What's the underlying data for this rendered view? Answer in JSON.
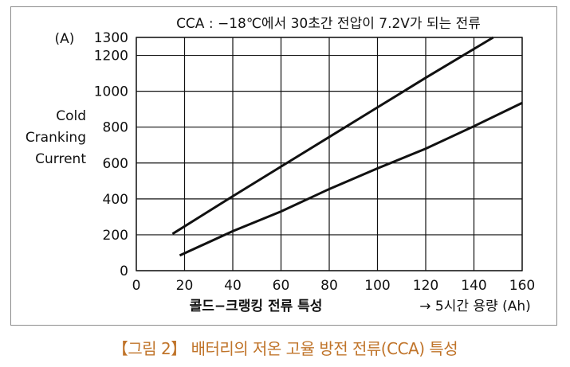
{
  "caption": "【그림 2】 배터리의 저온 고율 방전 전류(CCA) 특성",
  "chart_data": {
    "type": "line",
    "title": "CCA : −18℃에서 30초간 전압이 7.2V가 되는 전류",
    "y_unit": "(A)",
    "ylabel": [
      "Cold",
      "Cranking",
      "Current"
    ],
    "xlabel": "콜드−크랭킹 전류 특성",
    "xlabel_right": "→ 5시간 용량 (Ah)",
    "xlim": [
      0,
      160
    ],
    "ylim": [
      0,
      1300
    ],
    "x_ticks": [
      0,
      20,
      40,
      60,
      80,
      100,
      120,
      140,
      160
    ],
    "y_ticks": [
      0,
      200,
      400,
      600,
      800,
      1000,
      1200,
      1300
    ],
    "grid": true,
    "line_color": "#111111",
    "series": [
      {
        "x": [
          15,
          40,
          60,
          80,
          100,
          120,
          148
        ],
        "y": [
          205,
          415,
          580,
          745,
          910,
          1075,
          1300
        ]
      },
      {
        "x": [
          18,
          40,
          60,
          80,
          100,
          120,
          140,
          160
        ],
        "y": [
          85,
          220,
          330,
          455,
          570,
          680,
          805,
          935
        ]
      }
    ]
  }
}
